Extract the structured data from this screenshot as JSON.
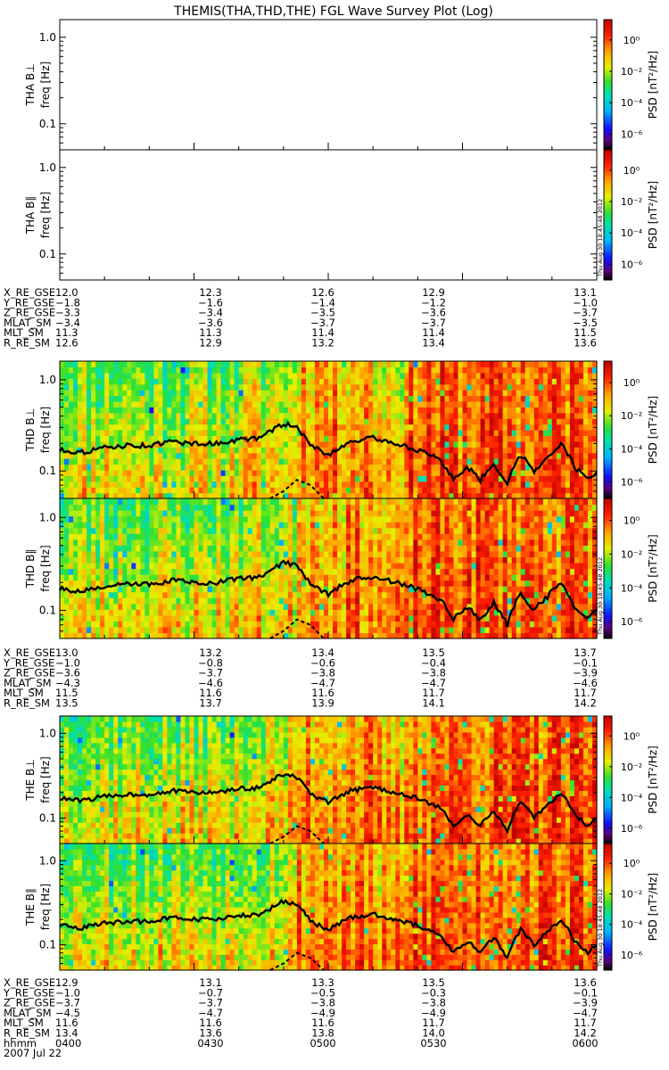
{
  "title": "THEMIS(THA,THD,THE) FGL Wave Survey Plot (Log)",
  "freq_label": "freq [Hz]",
  "colorbar": {
    "label": "PSD [nT²/Hz]",
    "ticks": [
      {
        "value": 0,
        "label": "10⁰"
      },
      {
        "value": -2,
        "label": "10⁻²"
      },
      {
        "value": -4,
        "label": "10⁻⁴"
      },
      {
        "value": -6,
        "label": "10⁻⁶"
      }
    ],
    "range_log10": [
      -7,
      1.3
    ]
  },
  "stamp": "Thu Aug 30 18:45:48 2012",
  "chart_data": {
    "type": "heatmap",
    "panels": [
      {
        "id": "tha-bperp",
        "probe": "THA",
        "label": "THA B⊥",
        "has_data": false,
        "yaxis": {
          "scale": "log",
          "range": [
            0.05,
            1.6
          ],
          "ticks": [
            {
              "v": 1.0,
              "t": "1.0"
            },
            {
              "v": 0.1,
              "t": "0.1"
            }
          ]
        }
      },
      {
        "id": "tha-bpar",
        "probe": "THA",
        "label": "THA B∥",
        "has_data": false,
        "yaxis": {
          "scale": "log",
          "range": [
            0.05,
            1.6
          ],
          "ticks": [
            {
              "v": 1.0,
              "t": "1.0"
            },
            {
              "v": 0.1,
              "t": "0.1"
            }
          ]
        }
      },
      {
        "id": "thd-bperp",
        "probe": "THD",
        "label": "THD B⊥",
        "has_data": true,
        "seed": 11,
        "yaxis": {
          "scale": "log",
          "range": [
            0.05,
            1.6
          ],
          "ticks": [
            {
              "v": 1.0,
              "t": "1.0"
            },
            {
              "v": 0.1,
              "t": "0.1"
            }
          ]
        }
      },
      {
        "id": "thd-bpar",
        "probe": "THD",
        "label": "THD B∥",
        "has_data": true,
        "seed": 23,
        "yaxis": {
          "scale": "log",
          "range": [
            0.05,
            1.6
          ],
          "ticks": [
            {
              "v": 1.0,
              "t": "1.0"
            },
            {
              "v": 0.1,
              "t": "0.1"
            }
          ]
        }
      },
      {
        "id": "the-bperp",
        "probe": "THE",
        "label": "THE B⊥",
        "has_data": true,
        "seed": 37,
        "yaxis": {
          "scale": "log",
          "range": [
            0.05,
            1.6
          ],
          "ticks": [
            {
              "v": 1.0,
              "t": "1.0"
            },
            {
              "v": 0.1,
              "t": "0.1"
            }
          ]
        }
      },
      {
        "id": "the-bpar",
        "probe": "THE",
        "label": "THE B∥",
        "has_data": true,
        "seed": 53,
        "yaxis": {
          "scale": "log",
          "range": [
            0.05,
            1.6
          ],
          "ticks": [
            {
              "v": 1.0,
              "t": "1.0"
            },
            {
              "v": 0.1,
              "t": "0.1"
            }
          ]
        }
      }
    ],
    "time": {
      "start_min": 240,
      "end_min": 360,
      "ticks": [
        "0400",
        "0430",
        "0500",
        "0530",
        "0600"
      ],
      "tick_min": [
        240,
        270,
        300,
        330,
        360
      ],
      "date": "2007 Jul 22",
      "label": "hhmm"
    },
    "solid_line_hz": {
      "minutes": [
        240,
        245,
        250,
        255,
        260,
        265,
        270,
        275,
        280,
        285,
        290,
        293,
        296,
        300,
        305,
        310,
        315,
        320,
        325,
        328,
        331,
        334,
        337,
        340,
        343,
        346,
        349,
        352,
        355,
        358,
        360
      ],
      "hz": [
        0.17,
        0.16,
        0.18,
        0.19,
        0.19,
        0.21,
        0.2,
        0.2,
        0.22,
        0.23,
        0.33,
        0.3,
        0.19,
        0.15,
        0.21,
        0.23,
        0.2,
        0.17,
        0.13,
        0.08,
        0.11,
        0.08,
        0.12,
        0.07,
        0.15,
        0.1,
        0.14,
        0.2,
        0.11,
        0.08,
        0.1
      ]
    },
    "dashed_line_hz": {
      "minutes": [
        287,
        290,
        293,
        296,
        299
      ],
      "hz": [
        0.05,
        0.06,
        0.08,
        0.07,
        0.05
      ]
    },
    "ephemeris": [
      {
        "probe": "THA",
        "rows": [
          {
            "name": "X_RE_GSE",
            "values": [
              "12.0",
              "12.3",
              "12.6",
              "12.9",
              "13.1"
            ]
          },
          {
            "name": "Y_RE_GSE",
            "values": [
              "-1.8",
              "-1.6",
              "-1.4",
              "-1.2",
              "-1.0"
            ]
          },
          {
            "name": "Z_RE_GSE",
            "values": [
              "-3.3",
              "-3.4",
              "-3.5",
              "-3.6",
              "-3.7"
            ]
          },
          {
            "name": "MLAT_SM",
            "values": [
              "-3.4",
              "-3.6",
              "-3.7",
              "-3.7",
              "-3.5"
            ]
          },
          {
            "name": "MLT_SM",
            "values": [
              "11.3",
              "11.3",
              "11.4",
              "11.4",
              "11.5"
            ]
          },
          {
            "name": "R_RE_SM",
            "values": [
              "12.6",
              "12.9",
              "13.2",
              "13.4",
              "13.6"
            ]
          }
        ]
      },
      {
        "probe": "THD",
        "rows": [
          {
            "name": "X_RE_GSE",
            "values": [
              "13.0",
              "13.2",
              "13.4",
              "13.5",
              "13.7"
            ]
          },
          {
            "name": "Y_RE_GSE",
            "values": [
              "-1.0",
              "-0.8",
              "-0.6",
              "-0.4",
              "-0.1"
            ]
          },
          {
            "name": "Z_RE_GSE",
            "values": [
              "-3.6",
              "-3.7",
              "-3.8",
              "-3.8",
              "-3.9"
            ]
          },
          {
            "name": "MLAT_SM",
            "values": [
              "-4.3",
              "-4.6",
              "-4.7",
              "-4.7",
              "-4.6"
            ]
          },
          {
            "name": "MLT_SM",
            "values": [
              "11.5",
              "11.6",
              "11.6",
              "11.7",
              "11.7"
            ]
          },
          {
            "name": "R_RE_SM",
            "values": [
              "13.5",
              "13.7",
              "13.9",
              "14.1",
              "14.2"
            ]
          }
        ]
      },
      {
        "probe": "THE",
        "rows": [
          {
            "name": "X_RE_GSE",
            "values": [
              "12.9",
              "13.1",
              "13.3",
              "13.5",
              "13.6"
            ]
          },
          {
            "name": "Y_RE_GSE",
            "values": [
              "-1.0",
              "-0.7",
              "-0.5",
              "-0.3",
              "-0.1"
            ]
          },
          {
            "name": "Z_RE_GSE",
            "values": [
              "-3.7",
              "-3.7",
              "-3.8",
              "-3.8",
              "-3.9"
            ]
          },
          {
            "name": "MLAT_SM",
            "values": [
              "-4.5",
              "-4.7",
              "-4.9",
              "-4.9",
              "-4.7"
            ]
          },
          {
            "name": "MLT_SM",
            "values": [
              "11.6",
              "11.6",
              "11.6",
              "11.7",
              "11.7"
            ]
          },
          {
            "name": "R_RE_SM",
            "values": [
              "13.4",
              "13.6",
              "13.8",
              "14.0",
              "14.2"
            ]
          }
        ]
      }
    ]
  }
}
